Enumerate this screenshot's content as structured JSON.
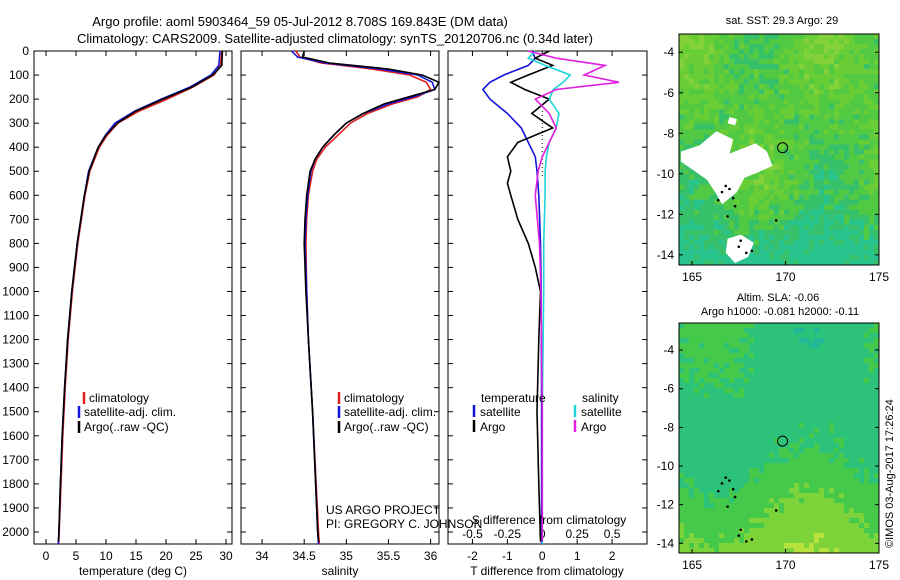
{
  "title": {
    "line1": "Argo profile: aoml 5903464_59 05-Jul-2012 8.708S 169.843E (DM data)",
    "line2": "Climatology: CARS2009. Satellite-adjusted climatology: synTS_20120706.nc (0.34d later)"
  },
  "side_stamp": "©IMOS 03-Aug-2017 17:26:24",
  "project": {
    "line1": "US ARGO PROJECT",
    "line2": "PI: GREGORY C. JOHNSON"
  },
  "colors": {
    "climatology": "#e02020",
    "satellite": "#1414d8",
    "argo": "#000000",
    "sal_satellite": "#1ed4d8",
    "sal_argo": "#e020e0",
    "marker": "#000000"
  },
  "chart_data": [
    {
      "type": "line",
      "xlabel": "temperature (deg C)",
      "xlim": [
        -2,
        31
      ],
      "xticks": [
        0,
        5,
        10,
        15,
        20,
        25,
        30
      ],
      "ylim": [
        0,
        2050
      ],
      "yticks": [
        0,
        100,
        200,
        300,
        400,
        500,
        600,
        700,
        800,
        900,
        1000,
        1100,
        1200,
        1300,
        1400,
        1500,
        1600,
        1700,
        1800,
        1900,
        2000
      ],
      "legend": [
        "climatology",
        "satellite-adj. clim.",
        "Argo(..raw -QC)"
      ],
      "series": [
        {
          "name": "climatology",
          "depth": [
            0,
            60,
            100,
            150,
            200,
            250,
            300,
            350,
            400,
            500,
            600,
            700,
            800,
            1000,
            1200,
            1400,
            1600,
            1800,
            2000,
            2050
          ],
          "values": [
            29.3,
            29.1,
            28.0,
            24.5,
            20.2,
            15.5,
            12.0,
            10.2,
            8.9,
            7.3,
            6.5,
            5.9,
            5.3,
            4.4,
            3.7,
            3.2,
            2.8,
            2.5,
            2.2,
            2.1
          ]
        },
        {
          "name": "satellite",
          "depth": [
            0,
            60,
            100,
            150,
            200,
            250,
            300,
            350,
            400,
            500,
            600,
            700,
            800,
            1000,
            1200,
            1400,
            1600,
            1800,
            2000,
            2050
          ],
          "values": [
            29.0,
            28.8,
            27.5,
            24.0,
            19.2,
            14.8,
            11.5,
            9.9,
            8.7,
            7.1,
            6.4,
            5.8,
            5.2,
            4.3,
            3.6,
            3.1,
            2.7,
            2.4,
            2.15,
            2.05
          ]
        },
        {
          "name": "Argo",
          "depth": [
            0,
            60,
            100,
            150,
            200,
            250,
            300,
            350,
            400,
            500,
            600,
            700,
            800,
            1000,
            1200,
            1400,
            1600,
            1800,
            2000,
            2040
          ],
          "values": [
            29.4,
            29.3,
            27.8,
            24.3,
            19.5,
            15.0,
            11.9,
            10.0,
            8.7,
            7.2,
            6.4,
            5.8,
            5.2,
            4.3,
            3.6,
            3.1,
            2.7,
            2.4,
            2.15,
            2.1
          ]
        }
      ]
    },
    {
      "type": "line",
      "xlabel": "salinity",
      "xlim": [
        33.75,
        36.1
      ],
      "xticks": [
        34,
        34.5,
        35,
        35.5,
        36
      ],
      "xticklabels": [
        "34",
        "34.5",
        "35",
        "35.5",
        "36"
      ],
      "ylim": [
        0,
        2050
      ],
      "legend": [
        "climatology",
        "satellite-adj. clim.",
        "Argo(..raw -QC)"
      ],
      "series": [
        {
          "name": "climatology",
          "depth": [
            0,
            25,
            50,
            75,
            100,
            130,
            160,
            190,
            220,
            260,
            300,
            350,
            400,
            450,
            500,
            600,
            700,
            800,
            1000,
            1200,
            1500,
            2000,
            2050
          ],
          "values": [
            34.4,
            34.45,
            34.7,
            35.3,
            35.75,
            35.95,
            36.0,
            35.85,
            35.55,
            35.25,
            35.05,
            34.9,
            34.75,
            34.65,
            34.6,
            34.55,
            34.53,
            34.52,
            34.53,
            34.55,
            34.6,
            34.67,
            34.68
          ]
        },
        {
          "name": "satellite",
          "depth": [
            0,
            25,
            50,
            75,
            100,
            130,
            160,
            190,
            220,
            260,
            300,
            350,
            400,
            450,
            500,
            600,
            700,
            800,
            1000,
            1200,
            1500,
            2000,
            2050
          ],
          "values": [
            34.35,
            34.42,
            34.75,
            35.4,
            35.85,
            36.02,
            36.05,
            35.8,
            35.5,
            35.2,
            35.0,
            34.85,
            34.72,
            34.63,
            34.58,
            34.54,
            34.52,
            34.51,
            34.53,
            34.55,
            34.6,
            34.66,
            34.67
          ]
        },
        {
          "name": "Argo",
          "depth": [
            0,
            25,
            50,
            75,
            100,
            130,
            160,
            190,
            220,
            260,
            300,
            350,
            400,
            450,
            500,
            600,
            700,
            800,
            1000,
            1200,
            1500,
            2000,
            2040
          ],
          "values": [
            34.5,
            34.48,
            34.8,
            35.5,
            35.9,
            36.1,
            36.05,
            35.75,
            35.45,
            35.2,
            35.0,
            34.85,
            34.72,
            34.63,
            34.57,
            34.53,
            34.51,
            34.5,
            34.52,
            34.55,
            34.6,
            34.66,
            34.67
          ]
        }
      ]
    },
    {
      "type": "line",
      "xlabel": "T difference from climatology",
      "xlabel_top": "S difference from climatology",
      "xlim": [
        -2.7,
        3.0
      ],
      "xticks": [
        -2,
        -1,
        0,
        1,
        2
      ],
      "sticks": [
        -0.5,
        -0.25,
        0,
        0.25,
        0.5
      ],
      "sticklabels": [
        "-0.5",
        "-0.25",
        "0",
        "0.25",
        "0.5"
      ],
      "ylim": [
        0,
        2050
      ],
      "legend_headers": [
        "temperature",
        "salinity"
      ],
      "legend": [
        "satellite",
        "Argo",
        "satellite",
        "Argo"
      ],
      "series": [
        {
          "name": "temperature satellite",
          "depth": [
            0,
            30,
            60,
            100,
            130,
            160,
            200,
            260,
            320,
            380,
            440,
            500,
            600,
            800,
            1000,
            1500,
            2050
          ],
          "values": [
            -0.3,
            -0.2,
            -0.4,
            -1.1,
            -1.5,
            -1.7,
            -1.5,
            -1.0,
            -0.6,
            -0.4,
            -0.2,
            -0.15,
            -0.1,
            -0.05,
            -0.03,
            -0.02,
            -0.02
          ]
        },
        {
          "name": "temperature Argo",
          "depth": [
            0,
            30,
            60,
            100,
            130,
            160,
            200,
            260,
            320,
            380,
            440,
            500,
            550,
            600,
            700,
            800,
            900,
            1000,
            1200,
            1500,
            1800,
            2040
          ],
          "values": [
            0.2,
            -0.2,
            0.3,
            -0.4,
            -0.9,
            -0.5,
            0.2,
            -0.3,
            0.3,
            -0.7,
            -1.0,
            -0.9,
            -1.0,
            -0.9,
            -0.7,
            -0.4,
            -0.2,
            -0.05,
            -0.1,
            -0.15,
            -0.1,
            -0.05
          ]
        },
        {
          "name": "salinity satellite",
          "depth": [
            0,
            30,
            60,
            100,
            130,
            160,
            200,
            260,
            320,
            380,
            440,
            500,
            600,
            800,
            1000,
            1500,
            2050
          ],
          "values": [
            -0.05,
            -0.1,
            0.02,
            0.2,
            0.15,
            0.08,
            0.05,
            0.12,
            0.1,
            0.05,
            0.03,
            0.02,
            0.02,
            0.01,
            0.01,
            0.0,
            0.0
          ]
        },
        {
          "name": "salinity Argo",
          "depth": [
            0,
            30,
            60,
            100,
            130,
            160,
            200,
            260,
            320,
            380,
            440,
            500,
            600,
            800,
            1000,
            1500,
            2040
          ],
          "values": [
            -0.1,
            0.1,
            0.45,
            0.3,
            0.55,
            0.1,
            -0.05,
            0.05,
            0.1,
            0.05,
            0.0,
            -0.03,
            -0.05,
            -0.02,
            -0.01,
            0.0,
            0.0
          ]
        }
      ]
    },
    {
      "type": "heatmap",
      "title": "sat. SST: 29.3 Argo: 29",
      "xlim": [
        164.3,
        175.0
      ],
      "ylim": [
        -14.5,
        -3.1
      ],
      "xticks": [
        165,
        170,
        175
      ],
      "yticks": [
        -4,
        -6,
        -8,
        -10,
        -12,
        -14
      ],
      "marker": [
        169.84,
        -8.71
      ],
      "palette": [
        "#29c48e",
        "#37c06a",
        "#52c942",
        "#69cd36",
        "#84d23a"
      ],
      "missing_color": "#ffffff"
    },
    {
      "type": "heatmap",
      "title": "Altim. SLA: -0.06",
      "subtitle": "Argo h1000: -0.081 h2000: -0.11",
      "xlim": [
        164.3,
        175.0
      ],
      "ylim": [
        -14.5,
        -2.6
      ],
      "xticks": [
        165,
        170,
        175
      ],
      "yticks": [
        -4,
        -6,
        -8,
        -10,
        -12,
        -14
      ],
      "marker": [
        169.84,
        -8.71
      ],
      "palette": [
        "#21b89a",
        "#2cc27a",
        "#45c94a",
        "#7cd43a",
        "#b9e33c"
      ]
    }
  ]
}
